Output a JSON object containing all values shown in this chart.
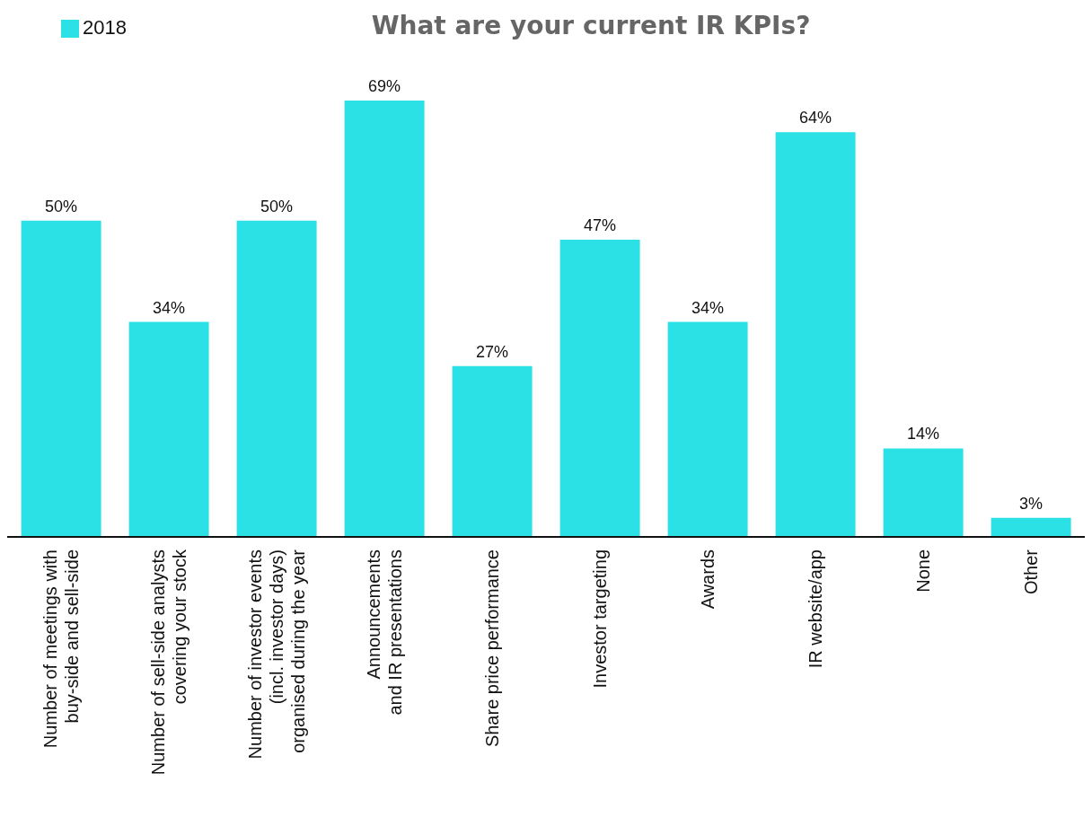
{
  "chart_data": {
    "type": "bar",
    "title": "What are your current IR KPIs?",
    "categories": [
      "Number of meetings with\nbuy-side and sell-side",
      "Number of sell-side analysts\ncovering your stock",
      "Number of investor events\n(incl. investor days)\norganised during the year",
      "Announcements\nand IR presentations",
      "Share price performance",
      "Investor targeting",
      "Awards",
      "IR website/app",
      "None",
      "Other"
    ],
    "series": [
      {
        "name": "2018",
        "color": "#2ce1e5",
        "values": [
          50,
          34,
          50,
          69,
          27,
          47,
          34,
          64,
          14,
          3
        ],
        "value_labels": [
          "50%",
          "34%",
          "50%",
          "69%",
          "27%",
          "47%",
          "34%",
          "64%",
          "14%",
          "3%"
        ]
      }
    ],
    "data_labels": true,
    "legend": "top left",
    "grid": false
  }
}
